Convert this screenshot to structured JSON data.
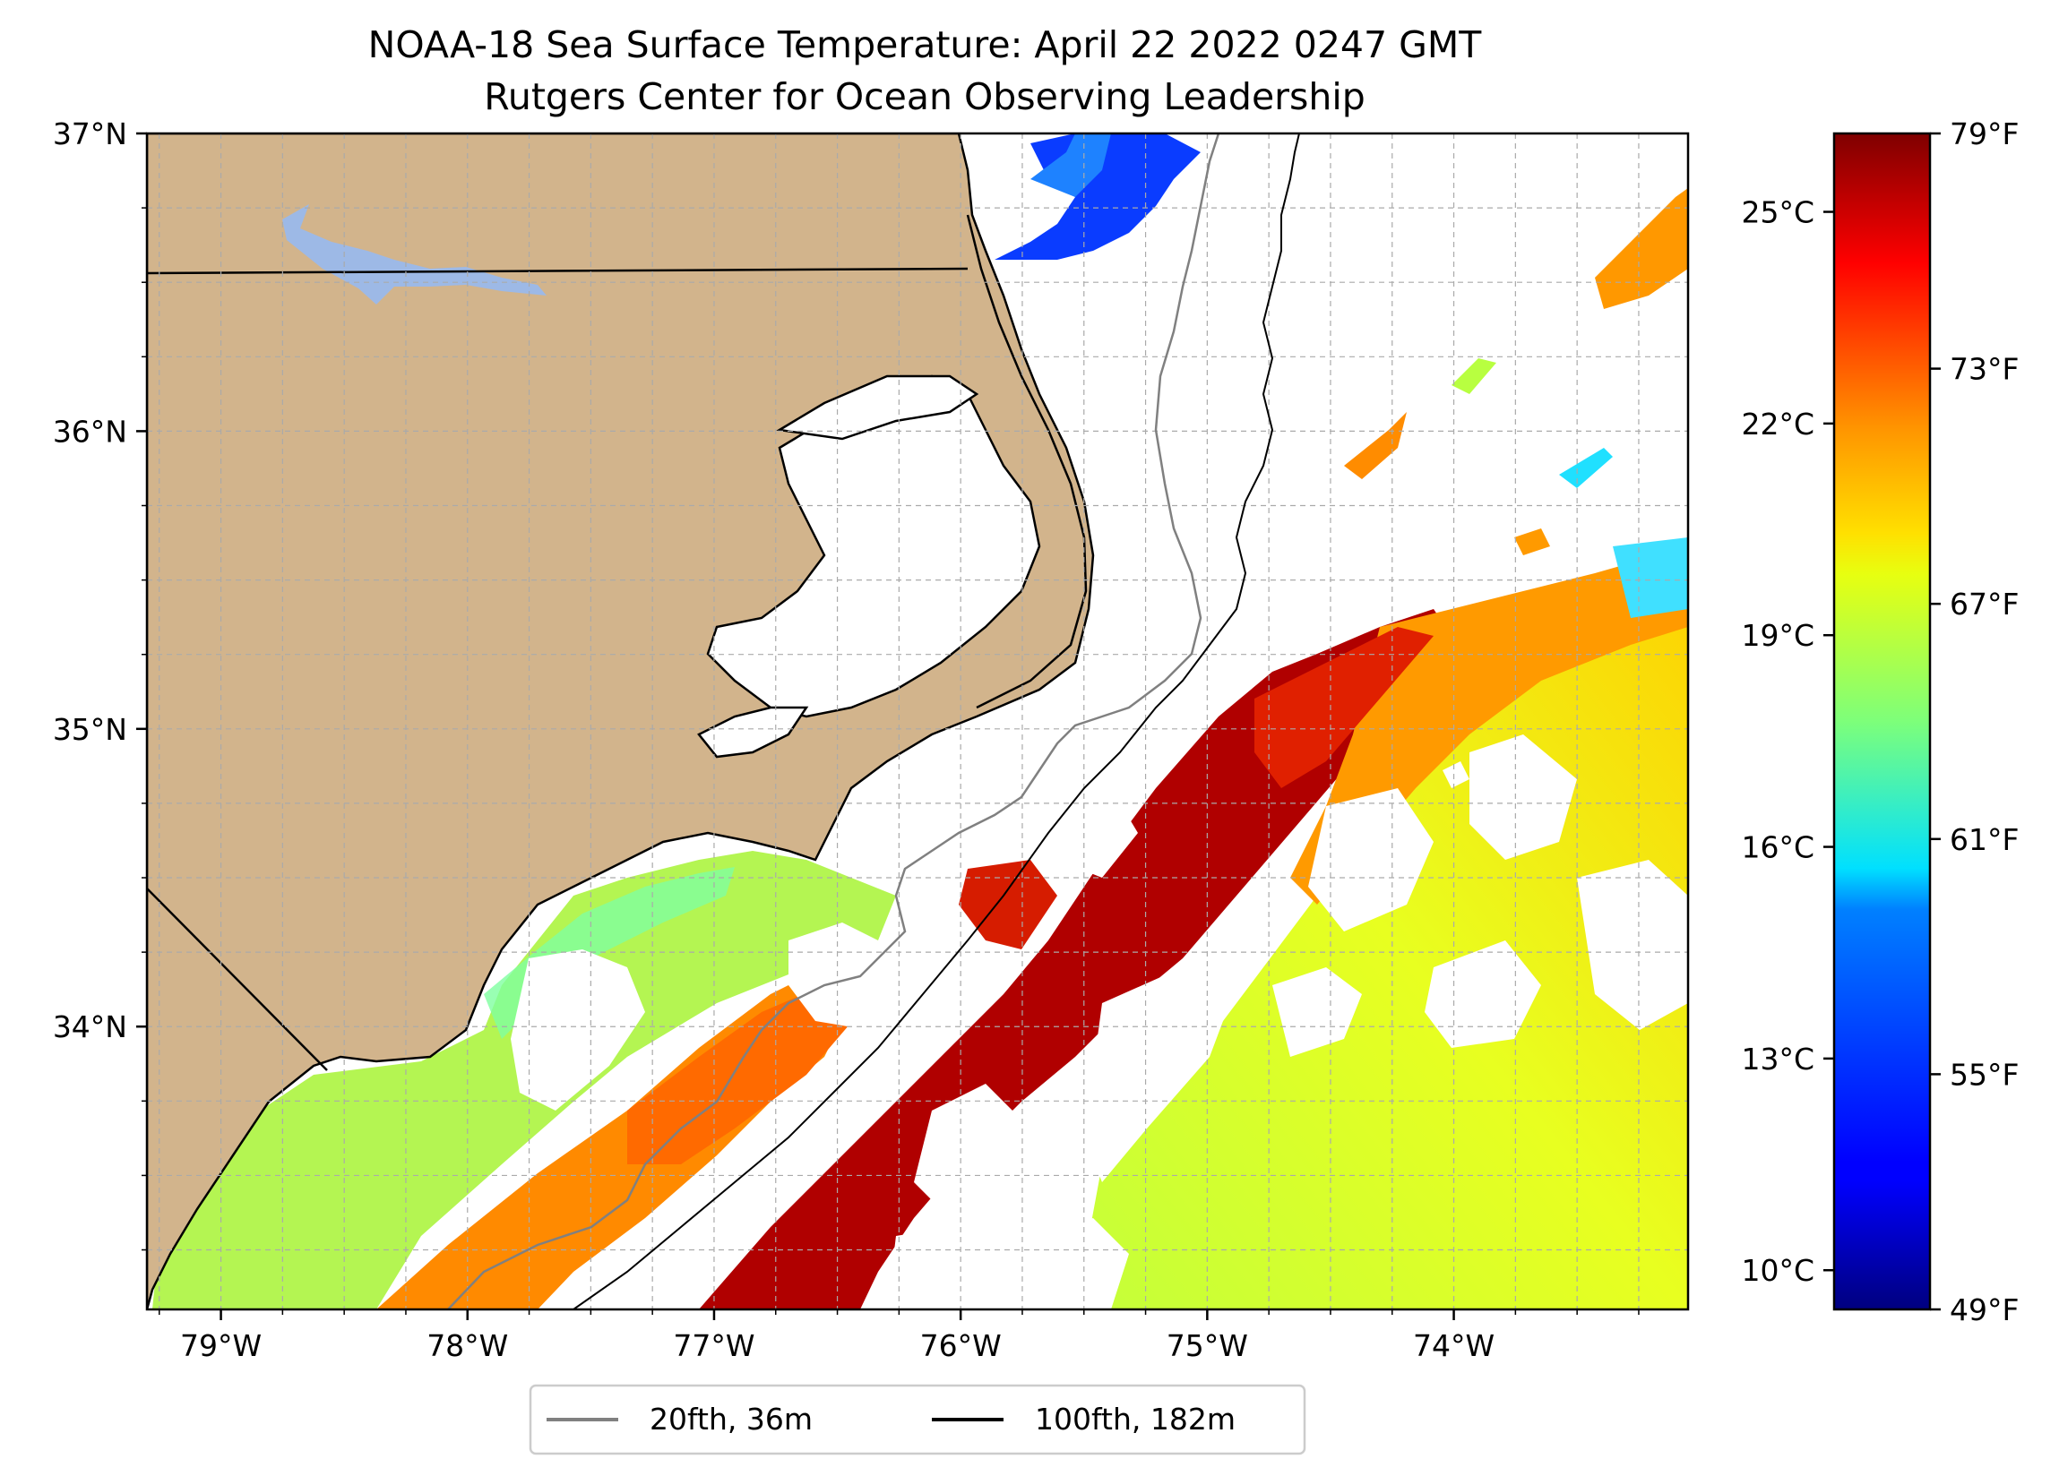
{
  "title": {
    "line1": "NOAA-18 Sea Surface Temperature: April 22 2022 0247 GMT",
    "line2": "Rutgers Center for Ocean Observing Leadership"
  },
  "map": {
    "lon_range": [
      -79.3,
      -73.05
    ],
    "lat_range": [
      33.05,
      37.0
    ],
    "lon_ticks": [
      {
        "value": -79,
        "label": "79°W"
      },
      {
        "value": -78,
        "label": "78°W"
      },
      {
        "value": -77,
        "label": "77°W"
      },
      {
        "value": -76,
        "label": "76°W"
      },
      {
        "value": -75,
        "label": "75°W"
      },
      {
        "value": -74,
        "label": "74°W"
      }
    ],
    "lat_ticks": [
      {
        "value": 37,
        "label": "37°N"
      },
      {
        "value": 36,
        "label": "36°N"
      },
      {
        "value": 35,
        "label": "35°N"
      },
      {
        "value": 34,
        "label": "34°N"
      }
    ],
    "gridlines": true,
    "land_color": "#d2b48c",
    "lake_color": "#9db9e6"
  },
  "colorbar": {
    "min_f": 49,
    "max_f": 79,
    "f_ticks": [
      {
        "value": 79,
        "label": "79°F"
      },
      {
        "value": 73,
        "label": "73°F"
      },
      {
        "value": 67,
        "label": "67°F"
      },
      {
        "value": 61,
        "label": "61°F"
      },
      {
        "value": 55,
        "label": "55°F"
      },
      {
        "value": 49,
        "label": "49°F"
      }
    ],
    "c_ticks": [
      {
        "value": 25,
        "label": "25°C"
      },
      {
        "value": 22,
        "label": "22°C"
      },
      {
        "value": 19,
        "label": "19°C"
      },
      {
        "value": 16,
        "label": "16°C"
      },
      {
        "value": 13,
        "label": "13°C"
      },
      {
        "value": 10,
        "label": "10°C"
      }
    ],
    "colormap": "jet"
  },
  "legend": {
    "position": "bottom-center",
    "items": [
      {
        "label": "20fth, 36m",
        "color": "#808080"
      },
      {
        "label": "100fth, 182m",
        "color": "#000000"
      }
    ]
  }
}
